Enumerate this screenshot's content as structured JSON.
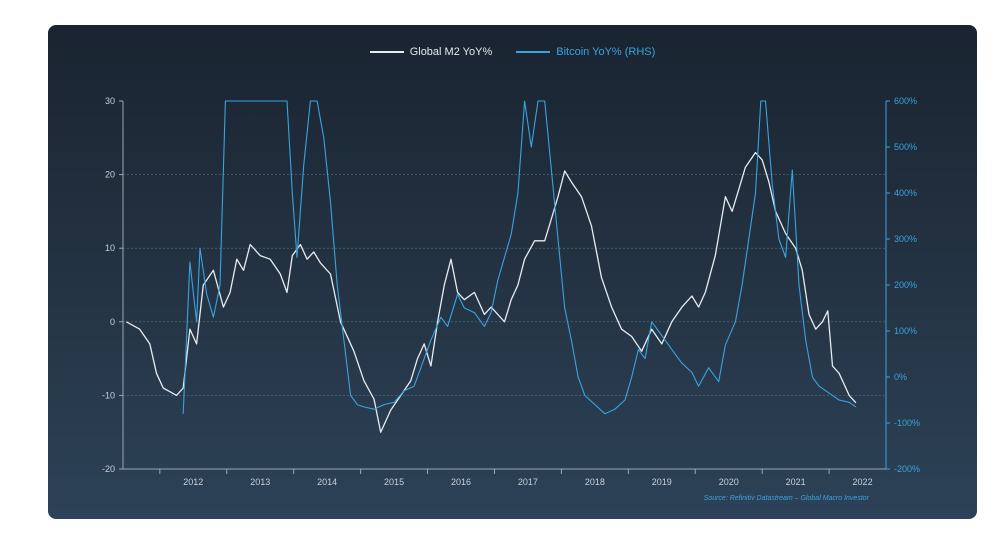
{
  "colors": {
    "m2": "#e8ecf0",
    "btc": "#3aa3e0",
    "axis": "#9aa7b5"
  },
  "legend": {
    "m2": "Global M2 YoY%",
    "btc": "Bitcoin YoY% (RHS)"
  },
  "source": "Source: Refinitiv Datastream – Global Macro Investor",
  "chart_data": {
    "type": "line",
    "x_ticks": [
      "2012",
      "2013",
      "2014",
      "2015",
      "2016",
      "2017",
      "2018",
      "2019",
      "2020",
      "2021",
      "2022"
    ],
    "y_left": {
      "ticks": [
        "30",
        "20",
        "10",
        "0",
        "-10",
        "-20"
      ],
      "range": [
        -20,
        30
      ]
    },
    "y_right": {
      "ticks": [
        "600%",
        "500%",
        "400%",
        "300%",
        "200%",
        "100%",
        "0%",
        "-100%",
        "-200%"
      ],
      "range": [
        -200,
        600
      ]
    },
    "grid": "horizontal dashed",
    "legend_position": "top-center",
    "series": [
      {
        "name": "Global M2 YoY%",
        "axis": "left",
        "points": [
          [
            2011.5,
            0
          ],
          [
            2011.7,
            -1
          ],
          [
            2011.85,
            -3
          ],
          [
            2011.95,
            -7
          ],
          [
            2012.05,
            -9
          ],
          [
            2012.15,
            -9.5
          ],
          [
            2012.25,
            -10
          ],
          [
            2012.35,
            -9
          ],
          [
            2012.45,
            -1
          ],
          [
            2012.55,
            -3
          ],
          [
            2012.65,
            5
          ],
          [
            2012.8,
            7
          ],
          [
            2012.95,
            2
          ],
          [
            2013.05,
            4
          ],
          [
            2013.15,
            8.5
          ],
          [
            2013.25,
            7
          ],
          [
            2013.35,
            10.5
          ],
          [
            2013.5,
            9
          ],
          [
            2013.65,
            8.5
          ],
          [
            2013.8,
            6.5
          ],
          [
            2013.9,
            4
          ],
          [
            2013.98,
            9
          ],
          [
            2014.1,
            10.5
          ],
          [
            2014.2,
            8.5
          ],
          [
            2014.3,
            9.5
          ],
          [
            2014.4,
            8
          ],
          [
            2014.55,
            6.5
          ],
          [
            2014.7,
            0
          ],
          [
            2014.9,
            -4
          ],
          [
            2015.05,
            -8
          ],
          [
            2015.2,
            -10.5
          ],
          [
            2015.3,
            -15
          ],
          [
            2015.45,
            -12
          ],
          [
            2015.6,
            -10
          ],
          [
            2015.75,
            -8
          ],
          [
            2015.85,
            -5
          ],
          [
            2015.95,
            -3
          ],
          [
            2016.05,
            -6
          ],
          [
            2016.15,
            0
          ],
          [
            2016.25,
            5
          ],
          [
            2016.35,
            8.5
          ],
          [
            2016.45,
            4
          ],
          [
            2016.55,
            3
          ],
          [
            2016.7,
            4
          ],
          [
            2016.85,
            1
          ],
          [
            2016.95,
            2
          ],
          [
            2017.05,
            1
          ],
          [
            2017.15,
            0
          ],
          [
            2017.25,
            3
          ],
          [
            2017.35,
            5
          ],
          [
            2017.45,
            8.5
          ],
          [
            2017.6,
            11
          ],
          [
            2017.75,
            11
          ],
          [
            2017.85,
            14
          ],
          [
            2017.95,
            17
          ],
          [
            2018.05,
            20.5
          ],
          [
            2018.15,
            19
          ],
          [
            2018.3,
            17
          ],
          [
            2018.45,
            13
          ],
          [
            2018.6,
            6
          ],
          [
            2018.75,
            2
          ],
          [
            2018.9,
            -1
          ],
          [
            2019.05,
            -2
          ],
          [
            2019.2,
            -4
          ],
          [
            2019.35,
            -1
          ],
          [
            2019.5,
            -3
          ],
          [
            2019.65,
            0
          ],
          [
            2019.8,
            2
          ],
          [
            2019.95,
            3.5
          ],
          [
            2020.05,
            2
          ],
          [
            2020.15,
            4
          ],
          [
            2020.3,
            9
          ],
          [
            2020.45,
            17
          ],
          [
            2020.55,
            15
          ],
          [
            2020.65,
            18
          ],
          [
            2020.75,
            21
          ],
          [
            2020.9,
            23
          ],
          [
            2021.0,
            22
          ],
          [
            2021.1,
            19
          ],
          [
            2021.2,
            15
          ],
          [
            2021.35,
            12
          ],
          [
            2021.5,
            10
          ],
          [
            2021.6,
            7
          ],
          [
            2021.7,
            1
          ],
          [
            2021.8,
            -1
          ],
          [
            2021.9,
            0
          ],
          [
            2021.98,
            1.5
          ],
          [
            2022.05,
            -6
          ],
          [
            2022.15,
            -7
          ],
          [
            2022.3,
            -10
          ],
          [
            2022.4,
            -11
          ]
        ]
      },
      {
        "name": "Bitcoin YoY% (RHS)",
        "axis": "right",
        "points": [
          [
            2012.35,
            -80
          ],
          [
            2012.45,
            250
          ],
          [
            2012.55,
            120
          ],
          [
            2012.6,
            280
          ],
          [
            2012.7,
            180
          ],
          [
            2012.8,
            130
          ],
          [
            2012.9,
            200
          ],
          [
            2012.98,
            600
          ],
          [
            2013.05,
            600
          ],
          [
            2013.9,
            600
          ],
          [
            2013.98,
            400
          ],
          [
            2014.05,
            260
          ],
          [
            2014.15,
            460
          ],
          [
            2014.25,
            600
          ],
          [
            2014.35,
            600
          ],
          [
            2014.45,
            520
          ],
          [
            2014.55,
            380
          ],
          [
            2014.65,
            200
          ],
          [
            2014.75,
            80
          ],
          [
            2014.85,
            -40
          ],
          [
            2014.95,
            -60
          ],
          [
            2015.05,
            -65
          ],
          [
            2015.2,
            -70
          ],
          [
            2015.35,
            -60
          ],
          [
            2015.5,
            -55
          ],
          [
            2015.65,
            -30
          ],
          [
            2015.8,
            -20
          ],
          [
            2015.95,
            40
          ],
          [
            2016.05,
            80
          ],
          [
            2016.2,
            130
          ],
          [
            2016.3,
            110
          ],
          [
            2016.45,
            180
          ],
          [
            2016.55,
            150
          ],
          [
            2016.7,
            140
          ],
          [
            2016.85,
            110
          ],
          [
            2016.95,
            140
          ],
          [
            2017.05,
            210
          ],
          [
            2017.15,
            260
          ],
          [
            2017.25,
            310
          ],
          [
            2017.35,
            400
          ],
          [
            2017.45,
            600
          ],
          [
            2017.55,
            500
          ],
          [
            2017.65,
            600
          ],
          [
            2017.75,
            600
          ],
          [
            2017.85,
            450
          ],
          [
            2017.95,
            300
          ],
          [
            2018.05,
            150
          ],
          [
            2018.15,
            80
          ],
          [
            2018.25,
            0
          ],
          [
            2018.35,
            -40
          ],
          [
            2018.5,
            -60
          ],
          [
            2018.65,
            -80
          ],
          [
            2018.8,
            -70
          ],
          [
            2018.95,
            -50
          ],
          [
            2019.05,
            0
          ],
          [
            2019.15,
            60
          ],
          [
            2019.25,
            40
          ],
          [
            2019.35,
            120
          ],
          [
            2019.5,
            90
          ],
          [
            2019.65,
            60
          ],
          [
            2019.8,
            30
          ],
          [
            2019.95,
            10
          ],
          [
            2020.05,
            -20
          ],
          [
            2020.2,
            20
          ],
          [
            2020.35,
            -10
          ],
          [
            2020.45,
            70
          ],
          [
            2020.6,
            120
          ],
          [
            2020.7,
            200
          ],
          [
            2020.8,
            300
          ],
          [
            2020.9,
            400
          ],
          [
            2020.98,
            600
          ],
          [
            2021.05,
            600
          ],
          [
            2021.15,
            420
          ],
          [
            2021.25,
            300
          ],
          [
            2021.35,
            260
          ],
          [
            2021.45,
            450
          ],
          [
            2021.55,
            200
          ],
          [
            2021.65,
            80
          ],
          [
            2021.75,
            0
          ],
          [
            2021.85,
            -20
          ],
          [
            2021.95,
            -30
          ],
          [
            2022.05,
            -40
          ],
          [
            2022.15,
            -50
          ],
          [
            2022.3,
            -55
          ],
          [
            2022.4,
            -65
          ]
        ]
      }
    ]
  }
}
